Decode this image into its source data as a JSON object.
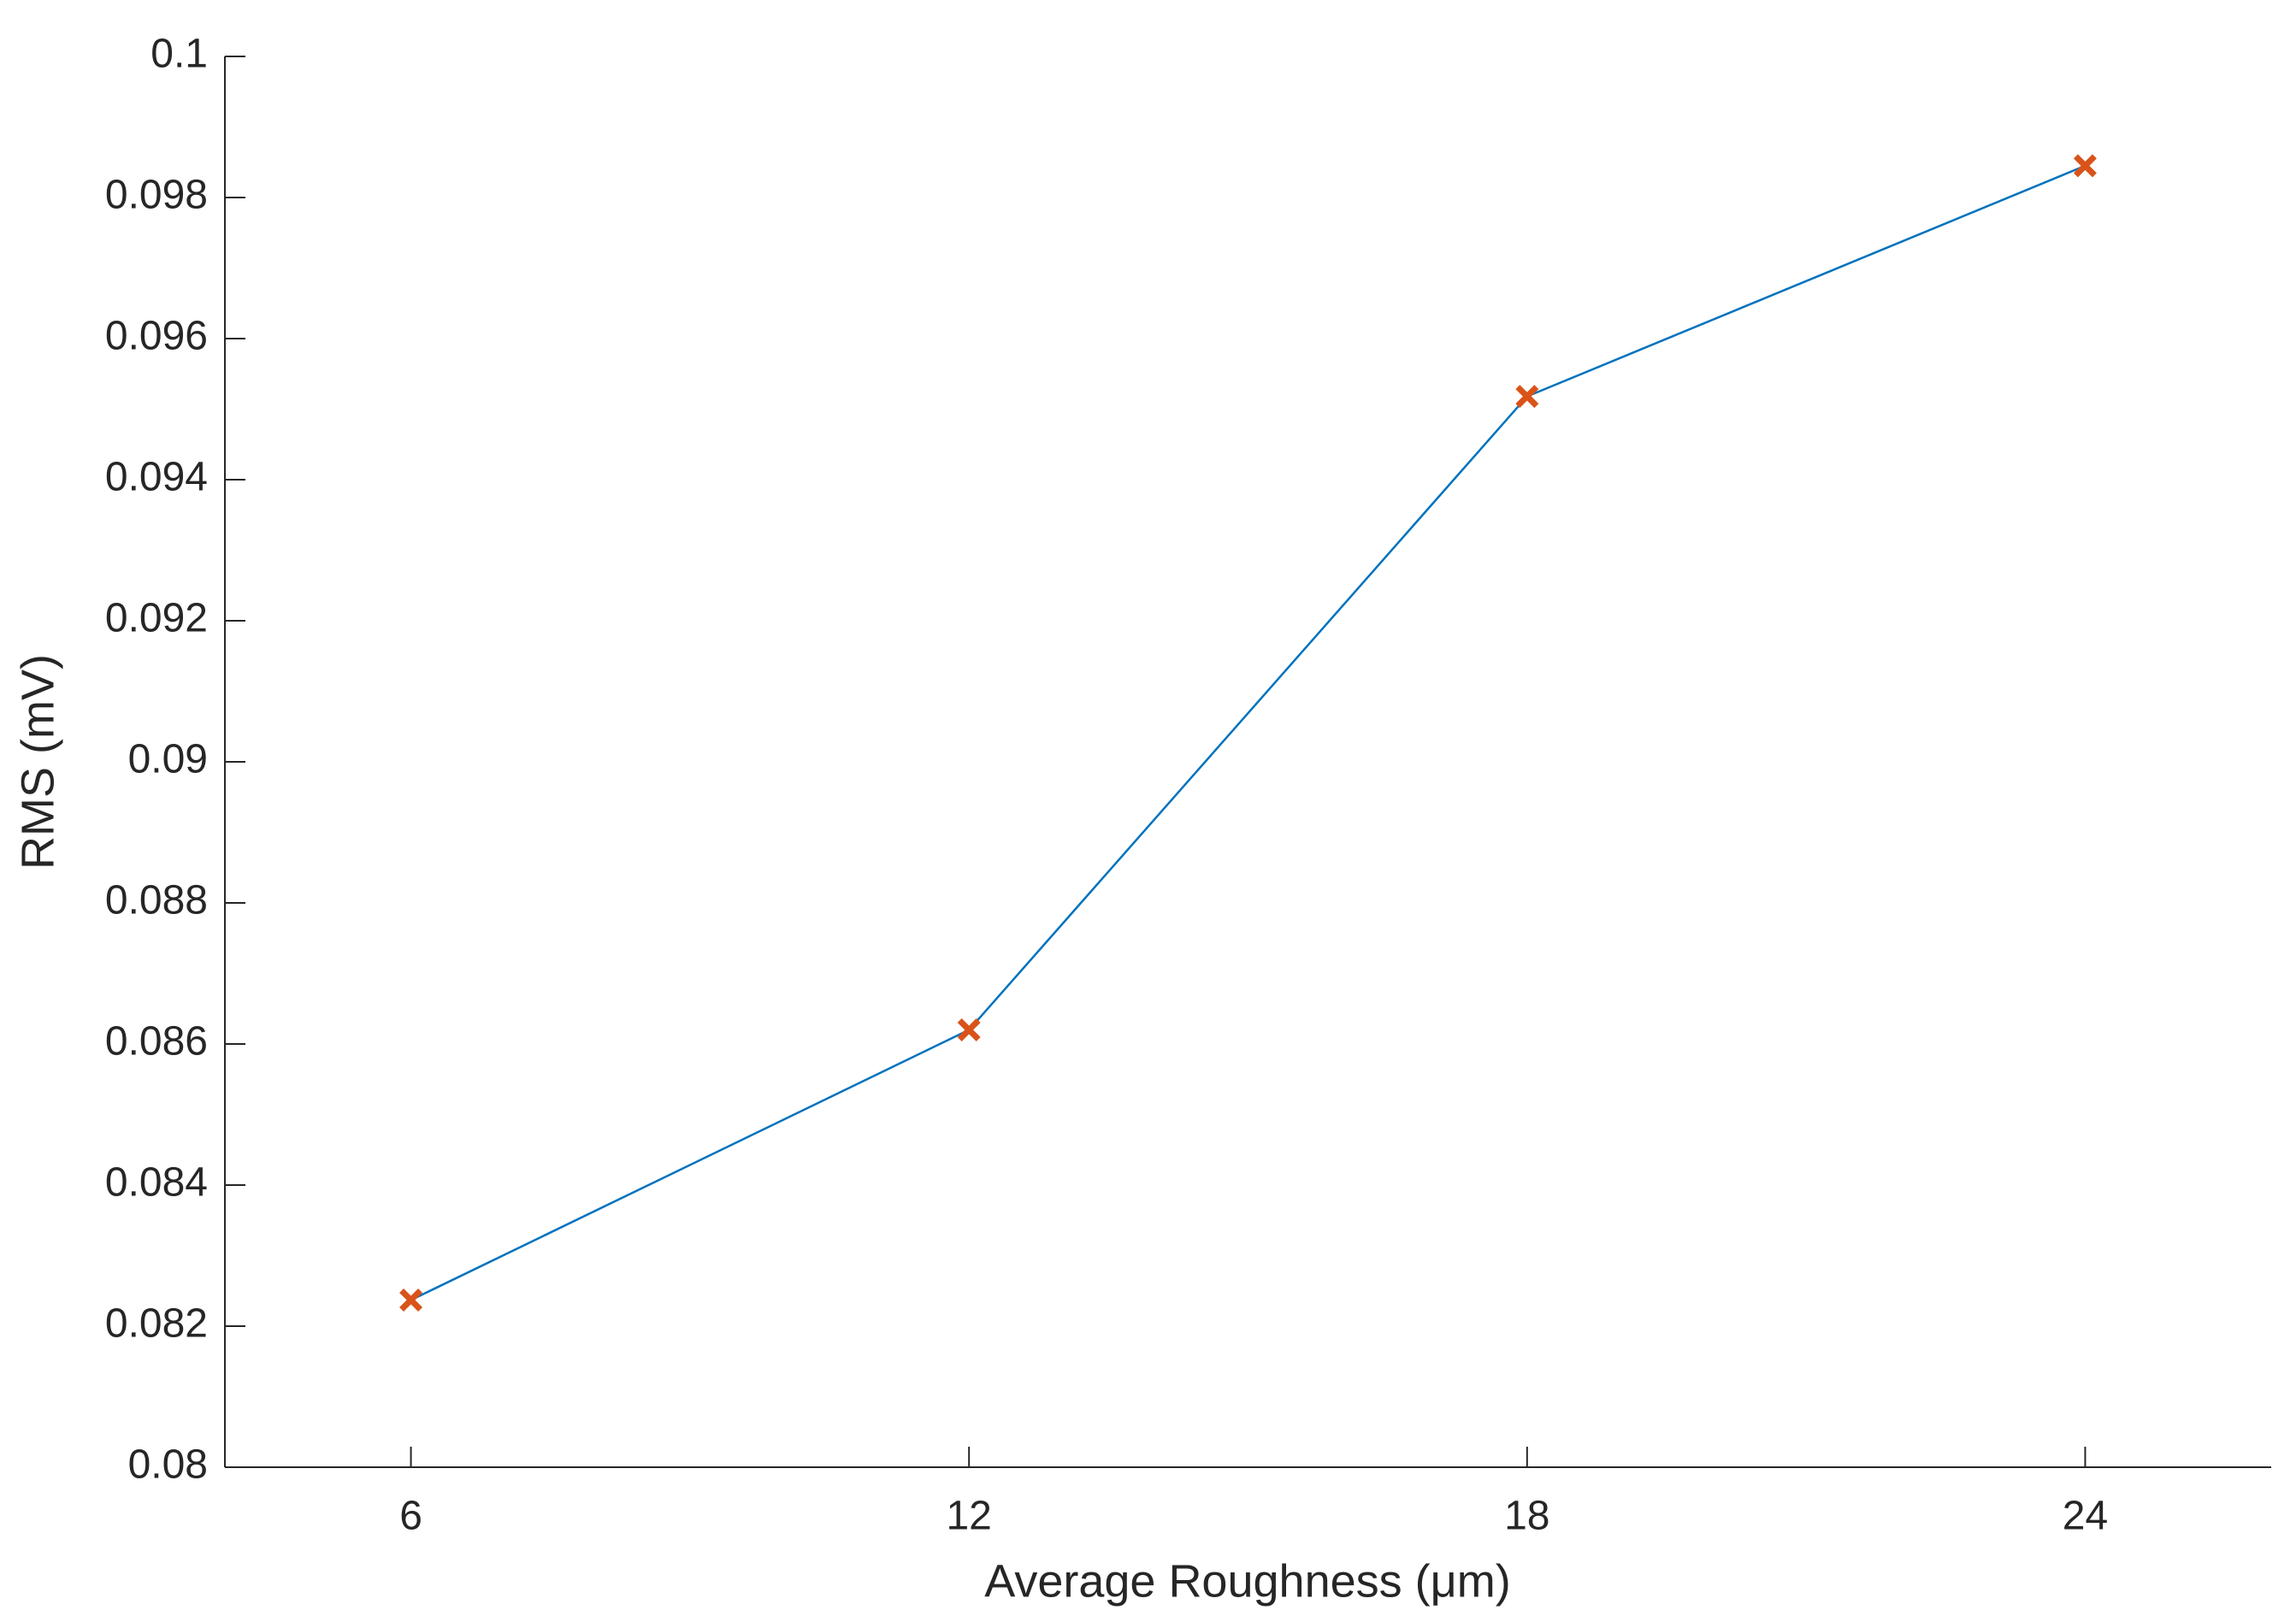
{
  "chart_data": {
    "type": "line",
    "x_label": "Average Roughness (μm)",
    "y_label": "RMS (mV)",
    "x": [
      6,
      12,
      18,
      24
    ],
    "values": [
      0.08237,
      0.0862,
      0.09518,
      0.09845
    ],
    "color": "#0072bd",
    "marker_color": "#d95319",
    "xlim": [
      4,
      26
    ],
    "xticks": [
      6,
      12,
      18,
      24
    ],
    "ylim": [
      0.08,
      0.1
    ],
    "yticks": [
      0.08,
      0.082,
      0.084,
      0.086,
      0.088,
      0.09,
      0.092,
      0.094,
      0.096,
      0.098,
      0.1
    ],
    "grid": false
  }
}
